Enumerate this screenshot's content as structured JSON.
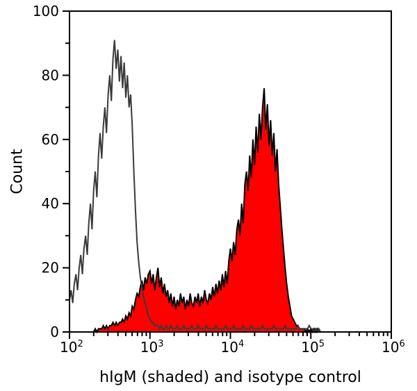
{
  "figure": {
    "background": "#ffffff"
  },
  "chart_data": {
    "type": "line",
    "subtype": "flow-cytometry-histogram-overlay",
    "title": "",
    "xlabel": "hIgM (shaded) and isotype control",
    "ylabel": "Count",
    "x_scale": "log10",
    "x_axis_log_range": [
      2,
      6
    ],
    "ylim": [
      0,
      100
    ],
    "grid": false,
    "legend_position": "none",
    "x_tick_base": "10",
    "x_major_tick_exponents": [
      2,
      3,
      4,
      5,
      6
    ],
    "y_major_ticks": [
      0,
      20,
      40,
      60,
      80,
      100
    ],
    "y_minor_ticks": [
      10,
      30,
      50,
      70,
      90
    ],
    "colors": {
      "shaded_fill": "#ff0000",
      "shaded_outline": "#000000",
      "open_stroke": "#3a3a3a",
      "axis": "#000000"
    },
    "log_start": 2.0,
    "log_step": 0.02,
    "series": [
      {
        "name": "isotype control",
        "style": "open",
        "peak_count": 91,
        "peak_x": 360,
        "counts": [
          10,
          13,
          9,
          15,
          18,
          13,
          20,
          24,
          18,
          26,
          30,
          24,
          34,
          40,
          32,
          44,
          50,
          42,
          55,
          62,
          54,
          64,
          70,
          62,
          74,
          80,
          72,
          85,
          91,
          82,
          88,
          78,
          86,
          76,
          84,
          73,
          80,
          70,
          74,
          64,
          50,
          38,
          28,
          22,
          17,
          14,
          11,
          9,
          7,
          5,
          4,
          3,
          3,
          2,
          2,
          2,
          1,
          2,
          1,
          1,
          2,
          1,
          1,
          2,
          1,
          1,
          1,
          2,
          1,
          1,
          1,
          2,
          1,
          1,
          1,
          1,
          2,
          1,
          1,
          1,
          2,
          1,
          1,
          1,
          1,
          2,
          1,
          1,
          1,
          1,
          1,
          2,
          1,
          1,
          1,
          1,
          1,
          2,
          1,
          1,
          1,
          1,
          2,
          1,
          1,
          1,
          1,
          1,
          2,
          1,
          1,
          1,
          1,
          2,
          1,
          1,
          1,
          1,
          1,
          1,
          2,
          1,
          1,
          1,
          1,
          1,
          1,
          2,
          1,
          1,
          1,
          1,
          1,
          1,
          2,
          1,
          1,
          1,
          1,
          1,
          1,
          1,
          2,
          1,
          1,
          1,
          1,
          1,
          1,
          2,
          1,
          1,
          0,
          1,
          0,
          1,
          0,
          0,
          0,
          0,
          0
        ]
      },
      {
        "name": "hIgM (shaded)",
        "style": "filled",
        "peak_count": 76,
        "peak_x": 26000,
        "counts": [
          0,
          0,
          0,
          0,
          0,
          0,
          0,
          0,
          0,
          0,
          0,
          0,
          0,
          0,
          0,
          0,
          1,
          0,
          1,
          1,
          1,
          2,
          1,
          2,
          1,
          2,
          2,
          3,
          2,
          3,
          2,
          3,
          3,
          4,
          3,
          5,
          4,
          6,
          5,
          8,
          7,
          10,
          12,
          11,
          14,
          16,
          13,
          17,
          15,
          18,
          19,
          15,
          18,
          13,
          17,
          20,
          14,
          17,
          12,
          15,
          11,
          13,
          9,
          12,
          8,
          11,
          7,
          10,
          8,
          12,
          9,
          11,
          7,
          10,
          8,
          12,
          9,
          8,
          11,
          9,
          12,
          8,
          11,
          9,
          13,
          10,
          9,
          12,
          10,
          14,
          11,
          15,
          12,
          16,
          13,
          18,
          14,
          19,
          15,
          22,
          26,
          22,
          28,
          24,
          32,
          35,
          30,
          40,
          34,
          46,
          50,
          44,
          55,
          48,
          60,
          52,
          64,
          56,
          68,
          60,
          70,
          76,
          63,
          71,
          58,
          66,
          55,
          62,
          50,
          57,
          46,
          39,
          32,
          26,
          20,
          15,
          11,
          8,
          5,
          4,
          3,
          2,
          2,
          1,
          1,
          1,
          1,
          0,
          1,
          0,
          1,
          0,
          1,
          0,
          1,
          0,
          0,
          0,
          0,
          0,
          0
        ]
      }
    ]
  }
}
